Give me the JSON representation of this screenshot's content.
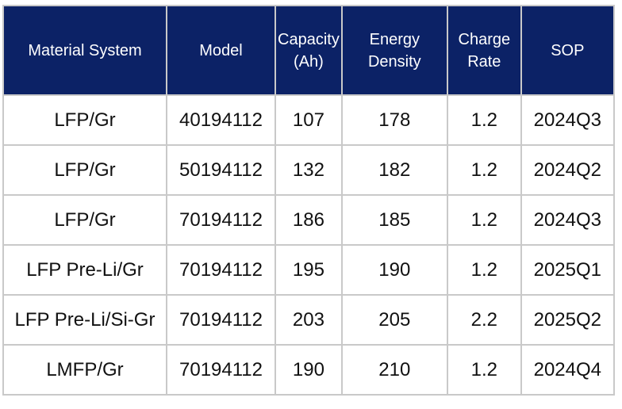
{
  "table": {
    "header": [
      "Material System",
      "Model",
      "Capacity (Ah)",
      "Energy Density",
      "Charge Rate",
      "SOP"
    ],
    "rows": [
      [
        "LFP/Gr",
        "40194112",
        107,
        178,
        1.2,
        "2024Q3"
      ],
      [
        "LFP/Gr",
        "50194112",
        132,
        182,
        1.2,
        "2024Q2"
      ],
      [
        "LFP/Gr",
        "70194112",
        186,
        185,
        1.2,
        "2024Q3"
      ],
      [
        "LFP Pre-Li/Gr",
        "70194112",
        195,
        190,
        1.2,
        "2025Q1"
      ],
      [
        "LFP Pre-Li/Si-Gr",
        "70194112",
        203,
        205,
        2.2,
        "2025Q2"
      ],
      [
        "LMFP/Gr",
        "70194112",
        190,
        210,
        1.2,
        "2024Q4"
      ]
    ]
  }
}
